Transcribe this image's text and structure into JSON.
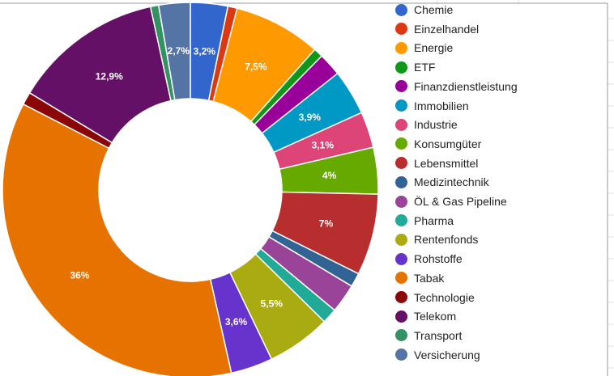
{
  "chart_data": {
    "type": "pie",
    "donut": true,
    "title": "",
    "legend_position": "right",
    "categories": [
      "Chemie",
      "Einzelhandel",
      "Energie",
      "ETF",
      "Finanzdienstleistung",
      "Immobilien",
      "Industrie",
      "Konsumgüter",
      "Lebensmittel",
      "Medizintechnik",
      "ÖL & Gas Pipeline",
      "Pharma",
      "Rentenfonds",
      "Rohstoffe",
      "Tabak",
      "Technologie",
      "Telekom",
      "Transport",
      "Versicherung"
    ],
    "values": [
      3.2,
      0.8,
      7.5,
      0.8,
      2.0,
      3.9,
      3.1,
      4.0,
      7.0,
      1.2,
      2.5,
      1.3,
      5.5,
      3.6,
      36.0,
      1.1,
      12.9,
      0.7,
      2.7
    ],
    "labels": [
      "3,2%",
      "",
      "7,5%",
      "",
      "",
      "3,9%",
      "3,1%",
      "4%",
      "7%",
      "",
      "",
      "",
      "5,5%",
      "3,6%",
      "36%",
      "",
      "12,9%",
      "",
      "2,7%"
    ],
    "colors": [
      "#3366cc",
      "#dc3912",
      "#ff9900",
      "#109618",
      "#990099",
      "#0099c6",
      "#dd4477",
      "#66aa00",
      "#b82e2e",
      "#316395",
      "#994499",
      "#22aa99",
      "#aaaa11",
      "#6633cc",
      "#e67300",
      "#8b0707",
      "#651067",
      "#329262",
      "#5574a6"
    ]
  }
}
